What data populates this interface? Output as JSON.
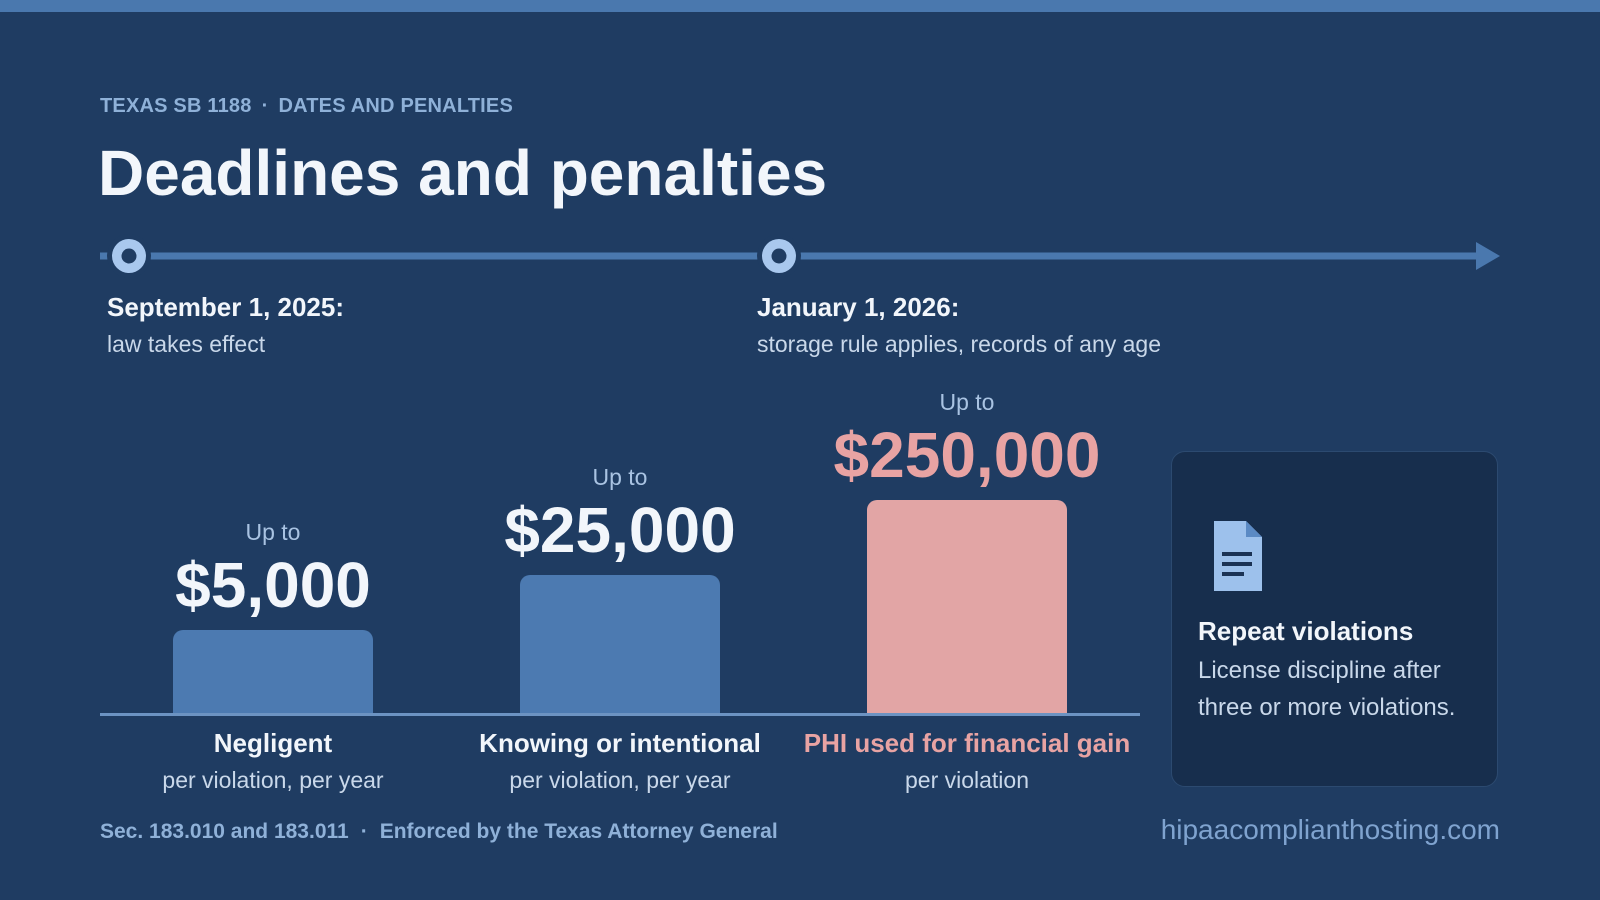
{
  "header": {
    "eyebrow_left": "TEXAS SB 1188",
    "eyebrow_sep": "·",
    "eyebrow_right": "DATES AND PENALTIES",
    "title": "Deadlines and penalties"
  },
  "timeline": {
    "milestones": [
      {
        "date": "September 1, 2025:",
        "desc": "law takes effect"
      },
      {
        "date": "January 1, 2026:",
        "desc": "storage rule applies, records of any age"
      }
    ]
  },
  "penalties": [
    {
      "prefix": "Up to",
      "amount": "$5,000",
      "value": 5000,
      "category": "Negligent",
      "basis": "per violation, per year",
      "accent": false
    },
    {
      "prefix": "Up to",
      "amount": "$25,000",
      "value": 25000,
      "category": "Knowing or intentional",
      "basis": "per violation, per year",
      "accent": false
    },
    {
      "prefix": "Up to",
      "amount": "$250,000",
      "value": 250000,
      "category": "PHI used for financial gain",
      "basis": "per violation",
      "accent": true
    }
  ],
  "card": {
    "icon": "document-icon",
    "title": "Repeat violations",
    "text": "License discipline after three or more violations."
  },
  "footer": {
    "left_a": "Sec. 183.010 and 183.011",
    "sep": "·",
    "left_b": "Enforced by the Texas Attorney General",
    "right": "hipaacomplianthosting.com"
  },
  "colors": {
    "background": "#1f3c62",
    "accent_bar": "#4c7ab1",
    "highlight": "#e2a5a5",
    "card_bg": "#172e4d"
  }
}
